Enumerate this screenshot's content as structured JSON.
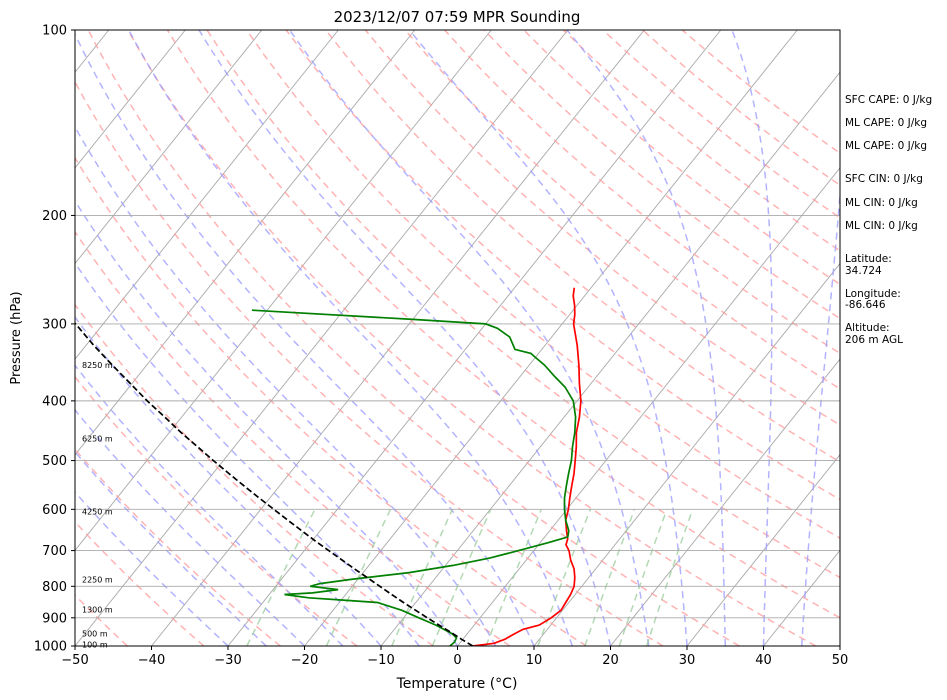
{
  "chart_data": {
    "type": "line",
    "subtype": "skew-T log-P sounding",
    "title": "2023/12/07 07:59 MPR Sounding",
    "xlabel": "Temperature (°C)",
    "ylabel": "Pressure (hPa)",
    "xlim": [
      -50,
      50
    ],
    "ylim": [
      1000,
      100
    ],
    "y_scale": "log",
    "x_ticks": [
      -50,
      -40,
      -30,
      -20,
      -10,
      0,
      10,
      20,
      30,
      40,
      50
    ],
    "y_ticks": [
      100,
      200,
      300,
      400,
      500,
      600,
      700,
      800,
      900,
      1000
    ],
    "grid": true,
    "colors": {
      "temperature": "#ff0000",
      "dewpoint": "#008000",
      "parcel": "#000000",
      "isotherms": "#aaaaaa",
      "dry_adiabats": "#ff9999",
      "moist_adiabats": "#9999ff",
      "mixing_ratio": "#99cc99"
    },
    "series": [
      {
        "key": "temperature",
        "points": [
          [
            1000,
            2.0
          ],
          [
            990,
            4.5
          ],
          [
            975,
            5.5
          ],
          [
            960,
            6.0
          ],
          [
            940,
            6.8
          ],
          [
            925,
            8.5
          ],
          [
            900,
            9.3
          ],
          [
            875,
            9.8
          ],
          [
            850,
            9.6
          ],
          [
            825,
            9.4
          ],
          [
            800,
            9.0
          ],
          [
            775,
            8.2
          ],
          [
            750,
            7.2
          ],
          [
            725,
            5.8
          ],
          [
            700,
            4.6
          ],
          [
            685,
            3.6
          ],
          [
            670,
            3.2
          ],
          [
            650,
            2.2
          ],
          [
            625,
            1.0
          ],
          [
            600,
            0.2
          ],
          [
            575,
            -0.8
          ],
          [
            550,
            -1.8
          ],
          [
            525,
            -2.8
          ],
          [
            500,
            -4.0
          ],
          [
            475,
            -5.3
          ],
          [
            450,
            -6.8
          ],
          [
            425,
            -8.0
          ],
          [
            400,
            -9.5
          ],
          [
            375,
            -11.5
          ],
          [
            350,
            -13.5
          ],
          [
            325,
            -15.8
          ],
          [
            300,
            -18.5
          ],
          [
            290,
            -19.3
          ],
          [
            280,
            -20.3
          ],
          [
            270,
            -21.5
          ],
          [
            262,
            -22.2
          ]
        ]
      },
      {
        "key": "dewpoint",
        "points": [
          [
            1000,
            -1.0
          ],
          [
            985,
            -0.8
          ],
          [
            970,
            -1.0
          ],
          [
            955,
            -2.0
          ],
          [
            940,
            -3.5
          ],
          [
            925,
            -5.0
          ],
          [
            900,
            -8.0
          ],
          [
            875,
            -11.0
          ],
          [
            850,
            -15.0
          ],
          [
            842,
            -20.0
          ],
          [
            835,
            -24.5
          ],
          [
            825,
            -28.0
          ],
          [
            820,
            -24.5
          ],
          [
            810,
            -21.5
          ],
          [
            800,
            -25.5
          ],
          [
            792,
            -24.5
          ],
          [
            780,
            -21.0
          ],
          [
            760,
            -14.0
          ],
          [
            740,
            -9.0
          ],
          [
            720,
            -5.0
          ],
          [
            700,
            -2.0
          ],
          [
            680,
            1.0
          ],
          [
            665,
            3.0
          ],
          [
            650,
            2.5
          ],
          [
            625,
            1.0
          ],
          [
            600,
            -0.3
          ],
          [
            575,
            -1.5
          ],
          [
            550,
            -2.5
          ],
          [
            525,
            -3.5
          ],
          [
            500,
            -4.5
          ],
          [
            475,
            -5.8
          ],
          [
            450,
            -7.0
          ],
          [
            425,
            -8.5
          ],
          [
            400,
            -10.5
          ],
          [
            380,
            -13.0
          ],
          [
            365,
            -15.5
          ],
          [
            350,
            -18.0
          ],
          [
            340,
            -20.0
          ],
          [
            335,
            -21.0
          ],
          [
            330,
            -23.5
          ],
          [
            315,
            -25.5
          ],
          [
            305,
            -28.0
          ],
          [
            300,
            -30.0
          ],
          [
            295,
            -40.0
          ],
          [
            285,
            -62.0
          ]
        ]
      },
      {
        "key": "parcel",
        "points": [
          [
            1000,
            2.0
          ],
          [
            975,
            -0.2
          ],
          [
            950,
            -2.3
          ],
          [
            925,
            -4.6
          ],
          [
            900,
            -6.9
          ],
          [
            875,
            -9.2
          ],
          [
            850,
            -11.6
          ],
          [
            825,
            -14.0
          ],
          [
            800,
            -16.4
          ],
          [
            775,
            -18.9
          ],
          [
            750,
            -21.5
          ],
          [
            725,
            -24.1
          ],
          [
            700,
            -26.8
          ],
          [
            675,
            -29.6
          ],
          [
            650,
            -32.4
          ],
          [
            625,
            -35.3
          ],
          [
            600,
            -38.3
          ],
          [
            575,
            -41.4
          ],
          [
            550,
            -44.6
          ],
          [
            525,
            -47.9
          ],
          [
            500,
            -51.3
          ],
          [
            475,
            -54.8
          ],
          [
            450,
            -58.5
          ],
          [
            425,
            -62.2
          ],
          [
            400,
            -66.2
          ],
          [
            375,
            -70.2
          ],
          [
            350,
            -74.5
          ],
          [
            325,
            -79.0
          ],
          [
            300,
            -83.6
          ],
          [
            281,
            -87.5
          ]
        ]
      }
    ],
    "height_labels": [
      {
        "text": "100 m",
        "p": 995
      },
      {
        "text": "500 m",
        "p": 955
      },
      {
        "text": "1300 m",
        "p": 872
      },
      {
        "text": "2250 m",
        "p": 780
      },
      {
        "text": "4250 m",
        "p": 605
      },
      {
        "text": "6250 m",
        "p": 460
      },
      {
        "text": "8250 m",
        "p": 350
      }
    ]
  },
  "info_panel": {
    "sfc_cape": "SFC CAPE: 0 J/kg",
    "ml_cape_1": "ML CAPE: 0 J/kg",
    "ml_cape_2": "ML CAPE: 0 J/kg",
    "sfc_cin": "SFC CIN: 0 J/kg",
    "ml_cin_1": "ML CIN: 0 J/kg",
    "ml_cin_2": "ML CIN: 0 J/kg",
    "latitude_label": "Latitude:",
    "latitude_value": "34.724",
    "longitude_label": "Longitude:",
    "longitude_value": "-86.646",
    "altitude_label": "Altitude:",
    "altitude_value": "206 m AGL"
  }
}
